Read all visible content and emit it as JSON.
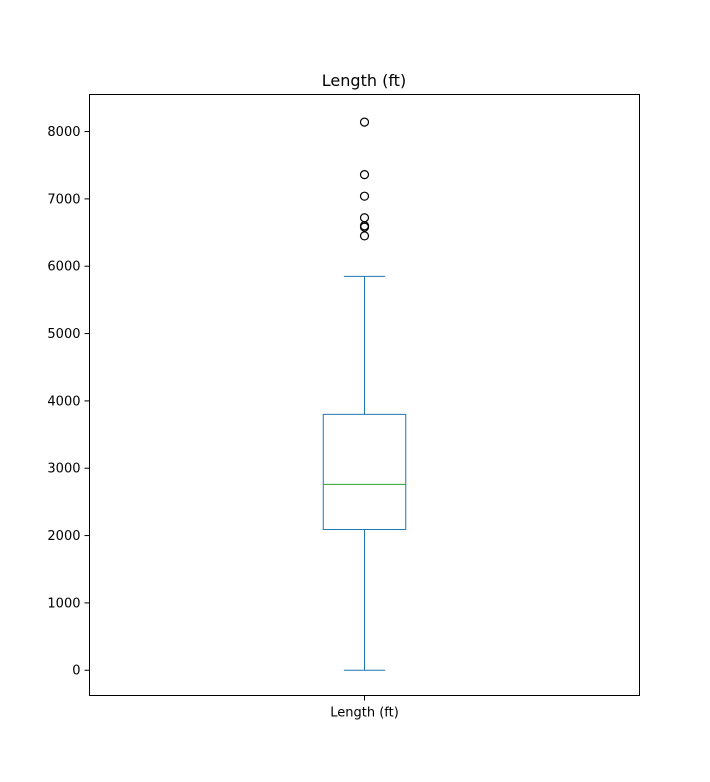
{
  "chart_data": {
    "type": "box",
    "title": "Length (ft)",
    "categories": [
      "Length (ft)"
    ],
    "xlabel": "",
    "ylabel": "",
    "ylim": [
      -375,
      8550
    ],
    "yticks": [
      0,
      1000,
      2000,
      3000,
      4000,
      5000,
      6000,
      7000,
      8000
    ],
    "grid": false,
    "boxes": [
      {
        "label": "Length (ft)",
        "whisker_low": 0,
        "q1": 2090,
        "median": 2760,
        "q3": 3800,
        "whisker_high": 5850,
        "outliers": [
          6450,
          6580,
          6600,
          6720,
          7040,
          7360,
          8140
        ]
      }
    ],
    "colors": {
      "box": "#1f77b4",
      "median": "#2ca02c",
      "outlier": "#000000"
    }
  }
}
